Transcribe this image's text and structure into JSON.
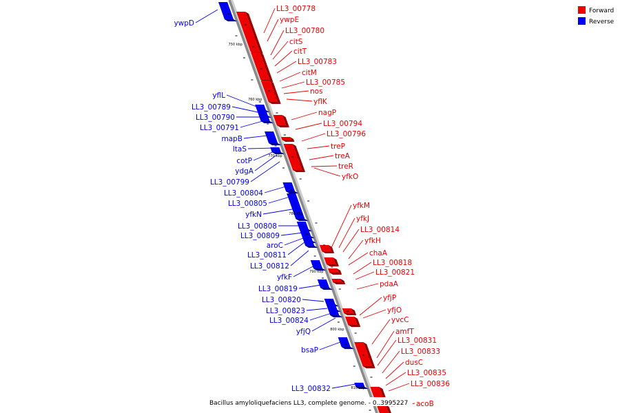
{
  "legend": [
    {
      "label": "Forward",
      "color": "#ee0000"
    },
    {
      "label": "Reverse",
      "color": "#0000ee"
    }
  ],
  "caption": "Bacillus amyloliquefaciens LL3, complete genome. - 0..3995227",
  "ticks": [
    "750 kbp",
    "760 kbp",
    "770 kbp",
    "780 kbp",
    "790 kbp",
    "800 kbp",
    "810 kbp"
  ],
  "forward_genes": [
    "LL3_00778",
    "ywpE",
    "LL3_00780",
    "citS",
    "citT",
    "LL3_00783",
    "citM",
    "LL3_00785",
    "nos",
    "yflK",
    "nagP",
    "LL3_00794",
    "LL3_00796",
    "treP",
    "treA",
    "treR",
    "yfkO",
    "yfkM",
    "yfkJ",
    "LL3_00814",
    "yfkH",
    "chaA",
    "LL3_00818",
    "LL3_00821",
    "pdaA",
    "yfjP",
    "yfjO",
    "yvcC",
    "amfT",
    "LL3_00831",
    "LL3_00833",
    "dusC",
    "LL3_00835",
    "LL3_00836",
    "acoB"
  ],
  "reverse_genes": [
    "ywpD",
    "yflL",
    "LL3_00789",
    "LL3_00790",
    "LL3_00791",
    "mapB",
    "ltaS",
    "cotP",
    "ydgA",
    "LL3_00799",
    "LL3_00804",
    "LL3_00805",
    "yfkN",
    "LL3_00808",
    "LL3_00809",
    "aroC",
    "LL3_00811",
    "LL3_00812",
    "yfkF",
    "LL3_00819",
    "LL3_00820",
    "LL3_00823",
    "LL3_00824",
    "yfjQ",
    "bsaP",
    "LL3_00832"
  ]
}
